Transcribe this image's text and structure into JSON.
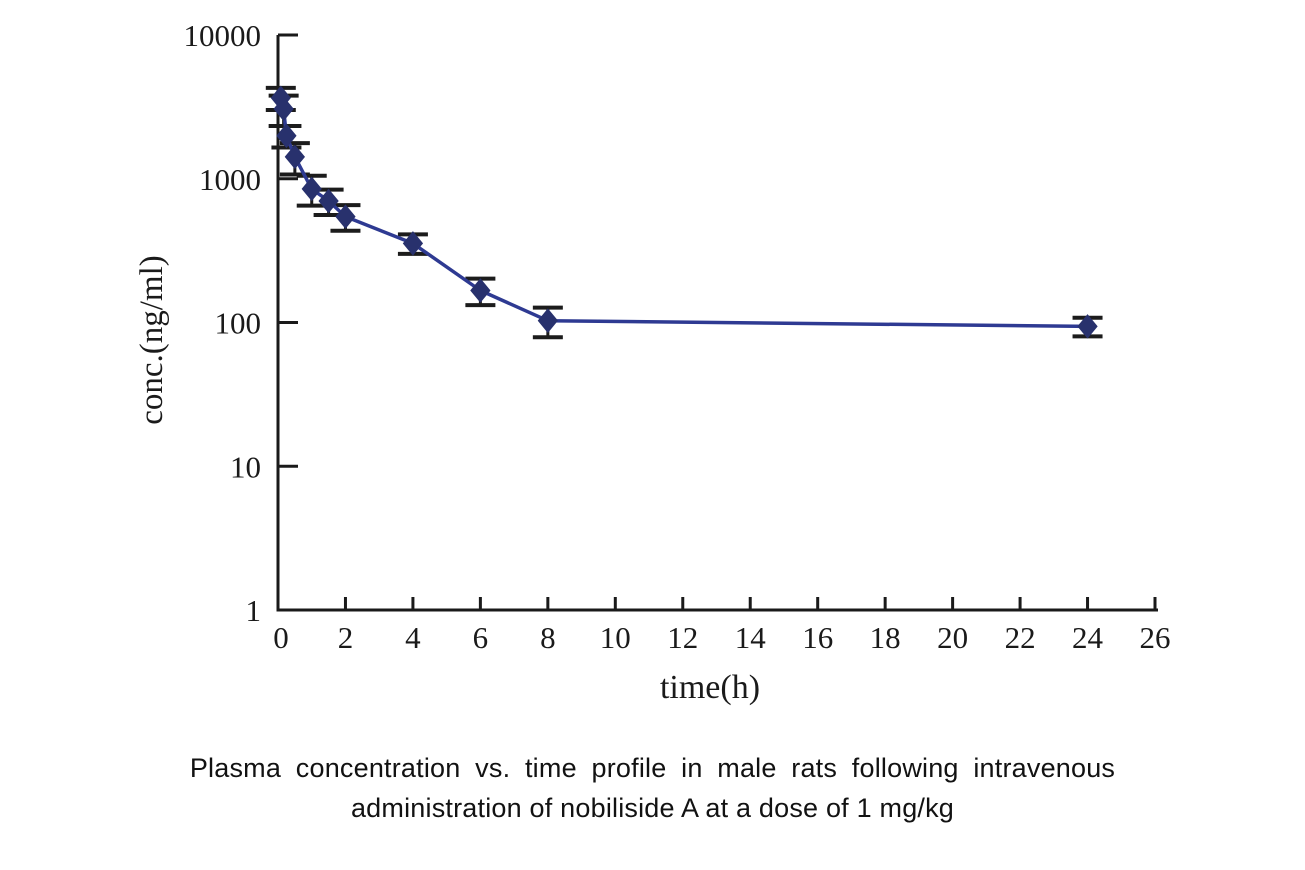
{
  "figure": {
    "caption_line1": "Plasma concentration vs. time profile in male rats following intravenous",
    "caption_line2": "administration of nobiliside A at a dose of 1 mg/kg"
  },
  "chart_data": {
    "type": "line",
    "title": "",
    "xlabel": "time(h)",
    "ylabel": "conc.(ng/ml)",
    "y_scale": "log",
    "xlim": [
      0,
      26
    ],
    "ylim": [
      1,
      10000
    ],
    "x_ticks": [
      0,
      2,
      4,
      6,
      8,
      10,
      12,
      14,
      16,
      18,
      20,
      22,
      24,
      26
    ],
    "y_ticks": [
      10000,
      1000,
      100,
      10,
      1
    ],
    "grid": false,
    "legend": "none",
    "colors": {
      "axis": "#1a1a1a",
      "error_bar": "#1c1c1c",
      "line": "#2e3a92",
      "marker": "#28316d"
    },
    "series": [
      {
        "marker": "diamond",
        "x": [
          0.083,
          0.167,
          0.25,
          0.5,
          1,
          1.5,
          2,
          4,
          6,
          8,
          24
        ],
        "y": [
          3650,
          3060,
          1990,
          1420,
          850,
          700,
          545,
          355,
          167,
          103,
          94
        ],
        "y_err": [
          640,
          730,
          340,
          350,
          200,
          140,
          110,
          55,
          35,
          24,
          14
        ]
      }
    ]
  }
}
